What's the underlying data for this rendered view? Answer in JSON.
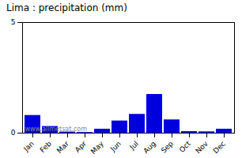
{
  "chart_data": {
    "type": "bar",
    "title": "Lima : precipitation (mm)",
    "categories": [
      "Jan",
      "Feb",
      "Mar",
      "Apr",
      "May",
      "Jun",
      "Jul",
      "Aug",
      "Sep",
      "Oct",
      "Nov",
      "Dec"
    ],
    "values": [
      0.8,
      0.3,
      0.05,
      0.03,
      0.18,
      0.55,
      0.85,
      1.75,
      0.6,
      0.07,
      0.06,
      0.18
    ],
    "color": "#0000dd",
    "ylim": [
      0,
      5
    ],
    "yticks": [
      0,
      5
    ],
    "grid": false,
    "annotations": [
      "www.allmetsat.com"
    ]
  }
}
